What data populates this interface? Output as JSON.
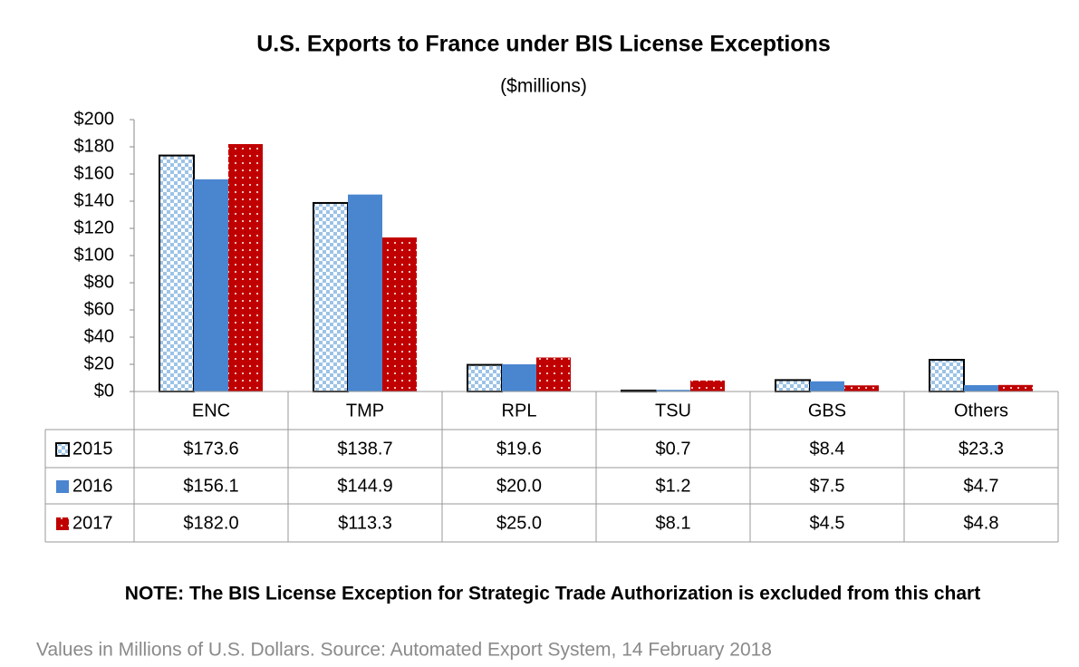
{
  "chart_data": {
    "type": "bar",
    "title": "U.S. Exports to France under BIS License Exceptions",
    "subtitle": "($millions)",
    "categories": [
      "ENC",
      "TMP",
      "RPL",
      "TSU",
      "GBS",
      "Others"
    ],
    "series": [
      {
        "name": "2015",
        "color": "#9dc3e6",
        "values": [
          173.6,
          138.7,
          19.6,
          0.7,
          8.4,
          23.3
        ],
        "value_labels": [
          "$173.6",
          "$138.7",
          "$19.6",
          "$0.7",
          "$8.4",
          "$23.3"
        ]
      },
      {
        "name": "2016",
        "color": "#4a86d0",
        "values": [
          156.1,
          144.9,
          20.0,
          1.2,
          7.5,
          4.7
        ],
        "value_labels": [
          "$156.1",
          "$144.9",
          "$20.0",
          "$1.2",
          "$7.5",
          "$4.7"
        ]
      },
      {
        "name": "2017",
        "color": "#c00000",
        "values": [
          182.0,
          113.3,
          25.0,
          8.1,
          4.5,
          4.8
        ],
        "value_labels": [
          "$182.0",
          "$113.3",
          "$25.0",
          "$8.1",
          "$4.5",
          "$4.8"
        ]
      }
    ],
    "ylim": [
      0,
      200
    ],
    "yticks": [
      {
        "value": 0,
        "label": "$0"
      },
      {
        "value": 20,
        "label": "$20"
      },
      {
        "value": 40,
        "label": "$40"
      },
      {
        "value": 60,
        "label": "$60"
      },
      {
        "value": 80,
        "label": "$80"
      },
      {
        "value": 100,
        "label": "$100"
      },
      {
        "value": 120,
        "label": "$120"
      },
      {
        "value": 140,
        "label": "$140"
      },
      {
        "value": 160,
        "label": "$160"
      },
      {
        "value": 180,
        "label": "$180"
      },
      {
        "value": 200,
        "label": "$200"
      }
    ],
    "grid": false,
    "note": "NOTE: The BIS License Exception for Strategic Trade Authorization is excluded from this chart",
    "source": "Values in Millions of U.S. Dollars. Source: Automated Export System, 14 February 2018"
  }
}
